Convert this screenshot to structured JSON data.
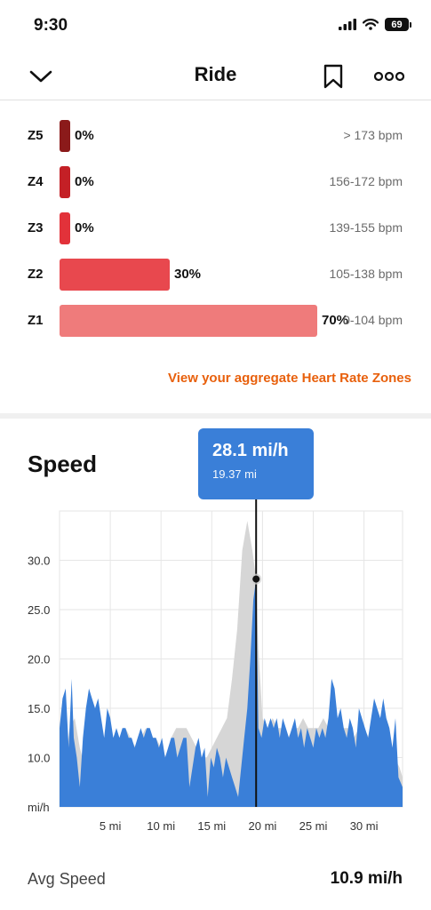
{
  "status_bar": {
    "time": "9:30",
    "battery": "69"
  },
  "nav": {
    "title": "Ride",
    "back_icon": "chevron-down-icon",
    "bookmark_icon": "bookmark-icon",
    "more_icon": "more-icon"
  },
  "heart_rate_zones": [
    {
      "zone": "Z5",
      "percent": "0%",
      "range": "> 173 bpm",
      "fraction": 0.0,
      "color": "#8b1a1a"
    },
    {
      "zone": "Z4",
      "percent": "0%",
      "range": "156-172 bpm",
      "fraction": 0.0,
      "color": "#c42026"
    },
    {
      "zone": "Z3",
      "percent": "0%",
      "range": "139-155 bpm",
      "fraction": 0.0,
      "color": "#e2323a"
    },
    {
      "zone": "Z2",
      "percent": "30%",
      "range": "105-138 bpm",
      "fraction": 0.3,
      "color": "#e8484e"
    },
    {
      "zone": "Z1",
      "percent": "70%",
      "range": "0-104 bpm",
      "fraction": 0.7,
      "color": "#ef7b7b"
    }
  ],
  "zones_link": "View your aggregate Heart Rate Zones",
  "speed": {
    "title": "Speed",
    "tooltip": {
      "value": "28.1 mi/h",
      "distance": "19.37 mi"
    },
    "avg_label": "Avg Speed",
    "avg_value": "10.9 mi/h"
  },
  "chart_data": {
    "type": "area",
    "y_unit_label": "mi/h",
    "y_ticks": [
      "10.0",
      "15.0",
      "20.0",
      "25.0",
      "30.0"
    ],
    "x_ticks": [
      "5 mi",
      "10 mi",
      "15 mi",
      "20 mi",
      "25 mi",
      "30 mi"
    ],
    "x_tick_values": [
      5,
      10,
      15,
      20,
      25,
      30
    ],
    "y_tick_values": [
      10,
      15,
      20,
      25,
      30
    ],
    "xlim": [
      0,
      33.8
    ],
    "ylim": [
      5,
      35
    ],
    "grid": true,
    "cursor": {
      "x": 19.37,
      "y": 28.1
    },
    "series": [
      {
        "color": "#d6d6d6",
        "points": [
          [
            0,
            7
          ],
          [
            0.5,
            9
          ],
          [
            1,
            13
          ],
          [
            1.5,
            14
          ],
          [
            2,
            11
          ],
          [
            2.5,
            9
          ],
          [
            3,
            8
          ],
          [
            3.5,
            10
          ],
          [
            4,
            12
          ],
          [
            4.5,
            11
          ],
          [
            5,
            11
          ],
          [
            5.5,
            12
          ],
          [
            6,
            12
          ],
          [
            6.5,
            13
          ],
          [
            7,
            12
          ],
          [
            7.5,
            11
          ],
          [
            8,
            12
          ],
          [
            8.5,
            13
          ],
          [
            9,
            12
          ],
          [
            9.5,
            12
          ],
          [
            10,
            11
          ],
          [
            10.5,
            10
          ],
          [
            11,
            12
          ],
          [
            11.5,
            13
          ],
          [
            12,
            13
          ],
          [
            12.5,
            13
          ],
          [
            13,
            12
          ],
          [
            13.5,
            11
          ],
          [
            14,
            10
          ],
          [
            14.5,
            10
          ],
          [
            15,
            11
          ],
          [
            15.5,
            12
          ],
          [
            16,
            13
          ],
          [
            16.5,
            14
          ],
          [
            17,
            18
          ],
          [
            17.5,
            23
          ],
          [
            18,
            31
          ],
          [
            18.5,
            34
          ],
          [
            19,
            31
          ],
          [
            19.37,
            28.1
          ],
          [
            19.6,
            21
          ],
          [
            20,
            14
          ],
          [
            20.5,
            13
          ],
          [
            21,
            14
          ],
          [
            21.5,
            13
          ],
          [
            22,
            13
          ],
          [
            22.5,
            12
          ],
          [
            23,
            13
          ],
          [
            23.5,
            13
          ],
          [
            24,
            14
          ],
          [
            24.5,
            13
          ],
          [
            25,
            13
          ],
          [
            25.5,
            13
          ],
          [
            26,
            14
          ],
          [
            26.5,
            13
          ],
          [
            27,
            13
          ],
          [
            27.5,
            12
          ],
          [
            28,
            13
          ],
          [
            28.5,
            13
          ],
          [
            29,
            12
          ],
          [
            29.5,
            13
          ],
          [
            30,
            13
          ],
          [
            30.5,
            12
          ],
          [
            31,
            12
          ],
          [
            31.5,
            13
          ],
          [
            32,
            13
          ],
          [
            32.5,
            11
          ],
          [
            33,
            10
          ],
          [
            33.5,
            9
          ],
          [
            33.8,
            8
          ]
        ]
      },
      {
        "color": "#3a7fd8",
        "points": [
          [
            0,
            13
          ],
          [
            0.3,
            16
          ],
          [
            0.6,
            17
          ],
          [
            0.9,
            11
          ],
          [
            1.2,
            18
          ],
          [
            1.4,
            12
          ],
          [
            1.7,
            10
          ],
          [
            2,
            7
          ],
          [
            2.3,
            12
          ],
          [
            2.6,
            15
          ],
          [
            2.9,
            17
          ],
          [
            3.2,
            16
          ],
          [
            3.5,
            15
          ],
          [
            3.8,
            16
          ],
          [
            4.1,
            14
          ],
          [
            4.4,
            12
          ],
          [
            4.7,
            15
          ],
          [
            5,
            14
          ],
          [
            5.3,
            12
          ],
          [
            5.6,
            13
          ],
          [
            5.9,
            12
          ],
          [
            6.2,
            13
          ],
          [
            6.5,
            13
          ],
          [
            6.8,
            12
          ],
          [
            7.1,
            12
          ],
          [
            7.4,
            11
          ],
          [
            7.7,
            12
          ],
          [
            8,
            13
          ],
          [
            8.3,
            12
          ],
          [
            8.6,
            13
          ],
          [
            8.9,
            13
          ],
          [
            9.2,
            12
          ],
          [
            9.5,
            12
          ],
          [
            9.8,
            11
          ],
          [
            10.1,
            12
          ],
          [
            10.4,
            10
          ],
          [
            10.7,
            11
          ],
          [
            11,
            12
          ],
          [
            11.3,
            12
          ],
          [
            11.6,
            10
          ],
          [
            11.9,
            11
          ],
          [
            12.2,
            12
          ],
          [
            12.5,
            12
          ],
          [
            12.8,
            7
          ],
          [
            13.1,
            9
          ],
          [
            13.4,
            11
          ],
          [
            13.7,
            12
          ],
          [
            14,
            10
          ],
          [
            14.3,
            11
          ],
          [
            14.6,
            6
          ],
          [
            14.9,
            10
          ],
          [
            15.2,
            9
          ],
          [
            15.5,
            11
          ],
          [
            15.8,
            10
          ],
          [
            16.1,
            8
          ],
          [
            16.4,
            10
          ],
          [
            16.7,
            9
          ],
          [
            17,
            8
          ],
          [
            17.3,
            7
          ],
          [
            17.6,
            6
          ],
          [
            17.9,
            9
          ],
          [
            18.2,
            12
          ],
          [
            18.5,
            15
          ],
          [
            18.8,
            20
          ],
          [
            19.1,
            26
          ],
          [
            19.37,
            28.1
          ],
          [
            19.6,
            13
          ],
          [
            19.9,
            12
          ],
          [
            20.2,
            14
          ],
          [
            20.5,
            13
          ],
          [
            20.8,
            14
          ],
          [
            21.1,
            13
          ],
          [
            21.4,
            14
          ],
          [
            21.7,
            12
          ],
          [
            22,
            14
          ],
          [
            22.3,
            13
          ],
          [
            22.6,
            12
          ],
          [
            22.9,
            13
          ],
          [
            23.2,
            14
          ],
          [
            23.5,
            12
          ],
          [
            23.8,
            13
          ],
          [
            24.1,
            11
          ],
          [
            24.4,
            13
          ],
          [
            24.7,
            12
          ],
          [
            25,
            11
          ],
          [
            25.3,
            13
          ],
          [
            25.6,
            12
          ],
          [
            25.9,
            13
          ],
          [
            26.2,
            12
          ],
          [
            26.5,
            14
          ],
          [
            26.8,
            18
          ],
          [
            27.1,
            17
          ],
          [
            27.4,
            14
          ],
          [
            27.7,
            15
          ],
          [
            28,
            13
          ],
          [
            28.3,
            12
          ],
          [
            28.6,
            14
          ],
          [
            28.9,
            13
          ],
          [
            29.2,
            11
          ],
          [
            29.5,
            15
          ],
          [
            29.8,
            14
          ],
          [
            30.1,
            13
          ],
          [
            30.4,
            12
          ],
          [
            30.7,
            14
          ],
          [
            31,
            16
          ],
          [
            31.3,
            15
          ],
          [
            31.6,
            14
          ],
          [
            31.9,
            16
          ],
          [
            32.2,
            14
          ],
          [
            32.5,
            13
          ],
          [
            32.8,
            11
          ],
          [
            33.1,
            14
          ],
          [
            33.4,
            8
          ],
          [
            33.8,
            7
          ]
        ]
      }
    ]
  }
}
